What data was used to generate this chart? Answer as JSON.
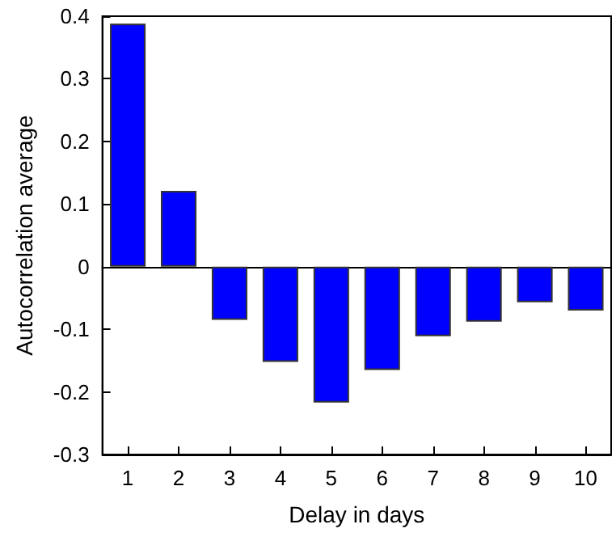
{
  "chart_data": {
    "type": "bar",
    "xlabel": "Delay in days",
    "ylabel": "Autocorrelation average",
    "categories": [
      "1",
      "2",
      "3",
      "4",
      "5",
      "6",
      "7",
      "8",
      "9",
      "10"
    ],
    "values": [
      0.388,
      0.121,
      -0.085,
      -0.152,
      -0.217,
      -0.165,
      -0.111,
      -0.088,
      -0.057,
      -0.07
    ],
    "color": "#0000ff",
    "ylim": [
      -0.3,
      0.4
    ],
    "yticks": [
      -0.3,
      -0.2,
      -0.1,
      0,
      0.1,
      0.2,
      0.3,
      0.4
    ]
  }
}
